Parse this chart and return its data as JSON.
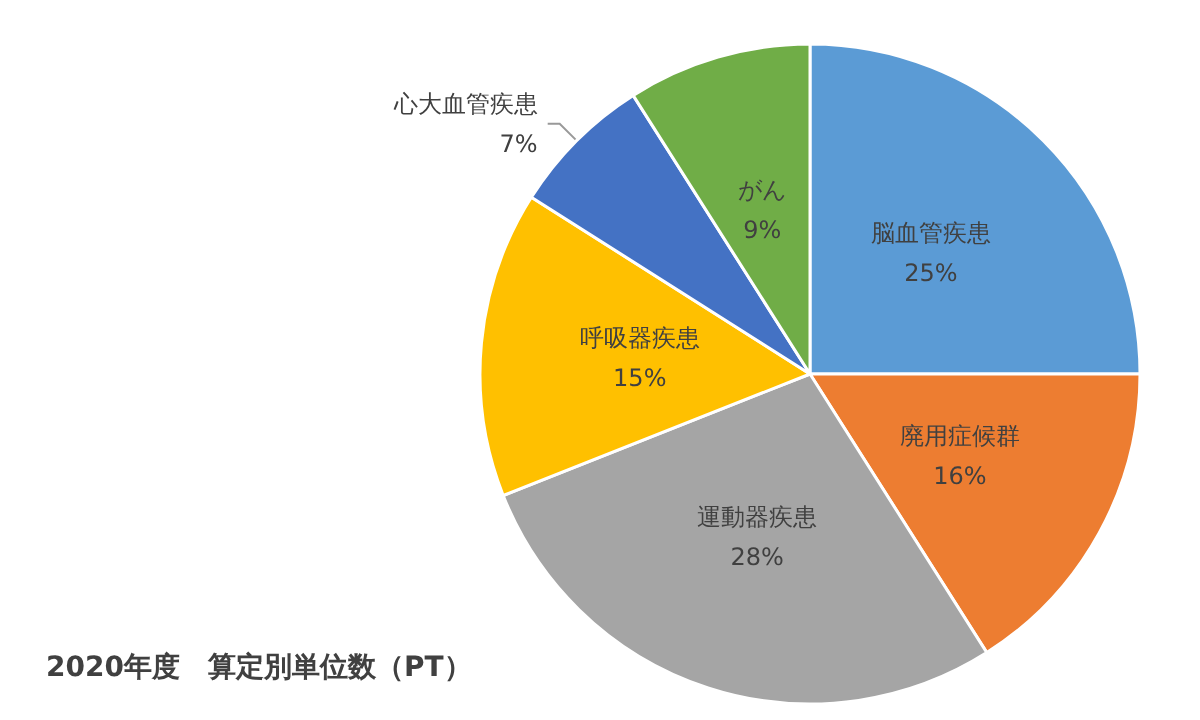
{
  "chart_data": {
    "type": "pie",
    "title": "2020年度　算定別単位数（PT）",
    "categories": [
      "脳血管疾患",
      "廃用症候群",
      "運動器疾患",
      "呼吸器疾患",
      "心大血管疾患",
      "がん"
    ],
    "values": [
      25,
      16,
      28,
      15,
      7,
      9
    ],
    "value_labels": [
      "25%",
      "16%",
      "28%",
      "15%",
      "7%",
      "9%"
    ],
    "colors": [
      "#5b9bd5",
      "#ed7d31",
      "#a5a5a5",
      "#ffc000",
      "#4472c4",
      "#70ad47"
    ],
    "legend": false
  }
}
